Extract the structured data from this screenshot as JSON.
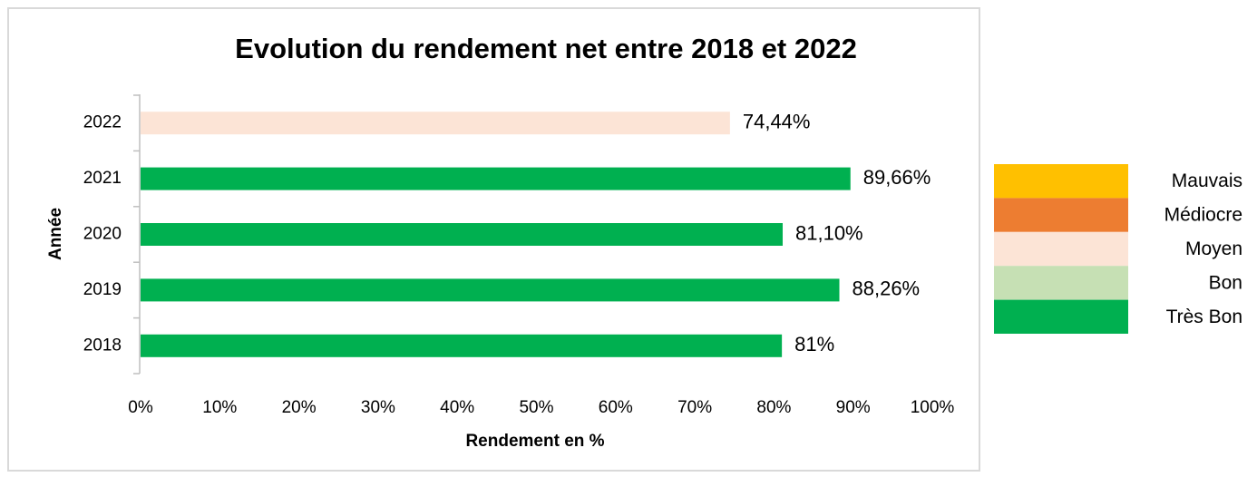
{
  "chart_data": {
    "type": "hbar",
    "title": "Evolution du rendement net entre 2018 et 2022",
    "x_label": "Rendement en %",
    "y_label": "Année",
    "categories": [
      "2018",
      "2019",
      "2020",
      "2021",
      "2022"
    ],
    "values": [
      81,
      88.26,
      81.1,
      89.66,
      74.44
    ],
    "value_labels": [
      "81%",
      "88,26%",
      "81,10%",
      "89,66%",
      "74,44%"
    ],
    "colors": [
      "#00b050",
      "#00b050",
      "#00b050",
      "#00b050",
      "#fce4d6"
    ],
    "xlim": [
      0,
      100
    ],
    "xticks": [
      {
        "value": 0,
        "label": "0%"
      },
      {
        "value": 10,
        "label": "10%"
      },
      {
        "value": 20,
        "label": "20%"
      },
      {
        "value": 30,
        "label": "30%"
      },
      {
        "value": 40,
        "label": "40%"
      },
      {
        "value": 50,
        "label": "50%"
      },
      {
        "value": 60,
        "label": "60%"
      },
      {
        "value": 70,
        "label": "70%"
      },
      {
        "value": 80,
        "label": "80%"
      },
      {
        "value": 90,
        "label": "90%"
      },
      {
        "value": 100,
        "label": "100%"
      }
    ],
    "legend": [
      {
        "name": "Mauvais",
        "color": "#ffc000"
      },
      {
        "name": "Médiocre",
        "color": "#ed7d31"
      },
      {
        "name": "Moyen",
        "color": "#fce4d6"
      },
      {
        "name": "Bon",
        "color": "#c6e0b4"
      },
      {
        "name": "Très Bon",
        "color": "#00b050"
      }
    ]
  }
}
